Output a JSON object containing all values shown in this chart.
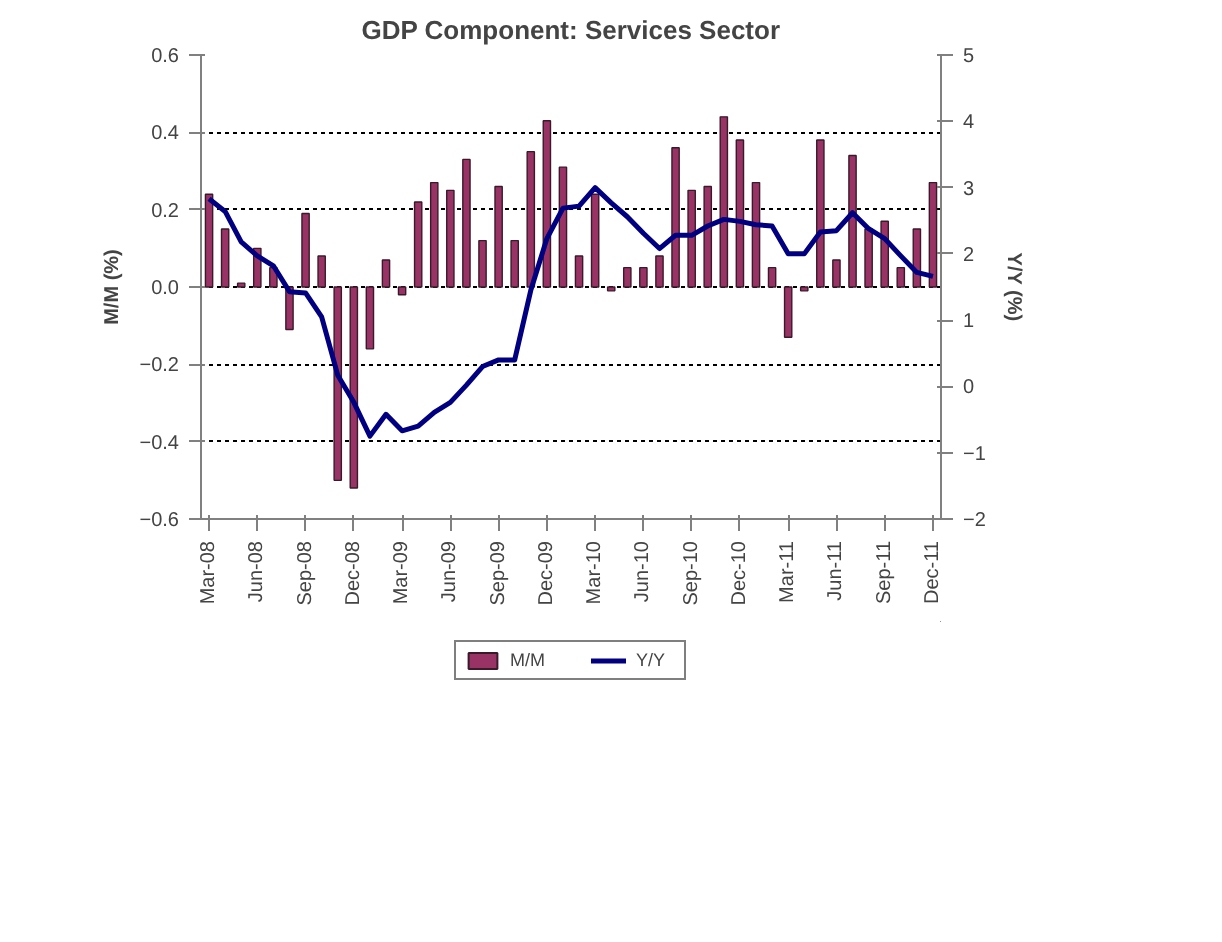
{
  "chart_data": {
    "type": "bar",
    "title": "GDP Component: Services Sector",
    "ylabel": "M/M (%)",
    "y2label": "Y/Y (%)",
    "categories": [
      "Mar-08",
      null,
      null,
      "Jun-08",
      null,
      null,
      "Sep-08",
      null,
      null,
      "Dec-08",
      null,
      null,
      "Mar-09",
      null,
      null,
      "Jun-09",
      null,
      null,
      "Sep-09",
      null,
      null,
      "Dec-09",
      null,
      null,
      "Mar-10",
      null,
      null,
      "Jun-10",
      null,
      null,
      "Sep-10",
      null,
      null,
      "Dec-10",
      null,
      null,
      "Mar-11",
      null,
      null,
      "Jun-11",
      null,
      null,
      "Sep-11",
      null,
      null,
      "Dec-11"
    ],
    "series": [
      {
        "name": "M/M",
        "color": "#993366",
        "values": [
          0.24,
          0.15,
          0.01,
          0.1,
          0.05,
          -0.11,
          0.19,
          0.08,
          -0.5,
          -0.52,
          -0.16,
          0.07,
          -0.02,
          0.22,
          0.27,
          0.25,
          0.33,
          0.12,
          0.26,
          0.12,
          0.35,
          0.43,
          0.31,
          0.08,
          0.24,
          -0.01,
          0.05,
          0.05,
          0.08,
          0.36,
          0.25,
          0.26,
          0.44,
          0.38,
          0.27,
          0.05,
          -0.13,
          -0.01,
          0.38,
          0.07,
          0.34,
          0.15,
          0.17,
          0.05,
          0.15,
          0.27
        ]
      },
      {
        "name": "Y/Y",
        "type": "line",
        "axis": "y2",
        "color": "#000080",
        "values": [
          2.83,
          2.64,
          2.18,
          1.97,
          1.82,
          1.43,
          1.41,
          1.05,
          0.17,
          -0.24,
          -0.75,
          -0.42,
          -0.67,
          -0.6,
          -0.39,
          -0.24,
          0.02,
          0.3,
          0.4,
          0.4,
          1.45,
          2.23,
          2.69,
          2.72,
          3.0,
          2.77,
          2.56,
          2.31,
          2.08,
          2.28,
          2.28,
          2.42,
          2.52,
          2.49,
          2.44,
          2.42,
          2.0,
          2.0,
          2.33,
          2.35,
          2.62,
          2.38,
          2.23,
          1.97,
          1.72,
          1.66
        ]
      }
    ],
    "ylim": [
      -0.6,
      0.6
    ],
    "yticks": [
      -0.6,
      -0.4,
      -0.2,
      {
        "value": 0,
        "label": "0.0"
      },
      0.2,
      0.4,
      0.6
    ],
    "y2lim": [
      -2,
      5
    ],
    "y2ticks": [
      -2,
      -1,
      0,
      1,
      2,
      3,
      4,
      5
    ],
    "grid": "y",
    "legend": "bottom",
    "marker": "none",
    "line_style": "solid"
  }
}
